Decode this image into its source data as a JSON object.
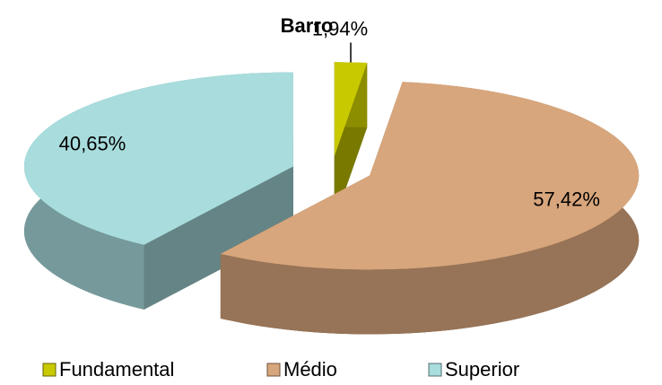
{
  "chart_data": {
    "type": "pie",
    "title": "Barro",
    "categories": [
      "Fundamental",
      "Médio",
      "Superior"
    ],
    "values": [
      1.94,
      57.42,
      40.65
    ],
    "value_labels": [
      "1,94%",
      "57,42%",
      "40,65%"
    ],
    "colors": [
      "#c9c900",
      "#d8a67c",
      "#a8dcdd"
    ],
    "legend": "bottom"
  }
}
